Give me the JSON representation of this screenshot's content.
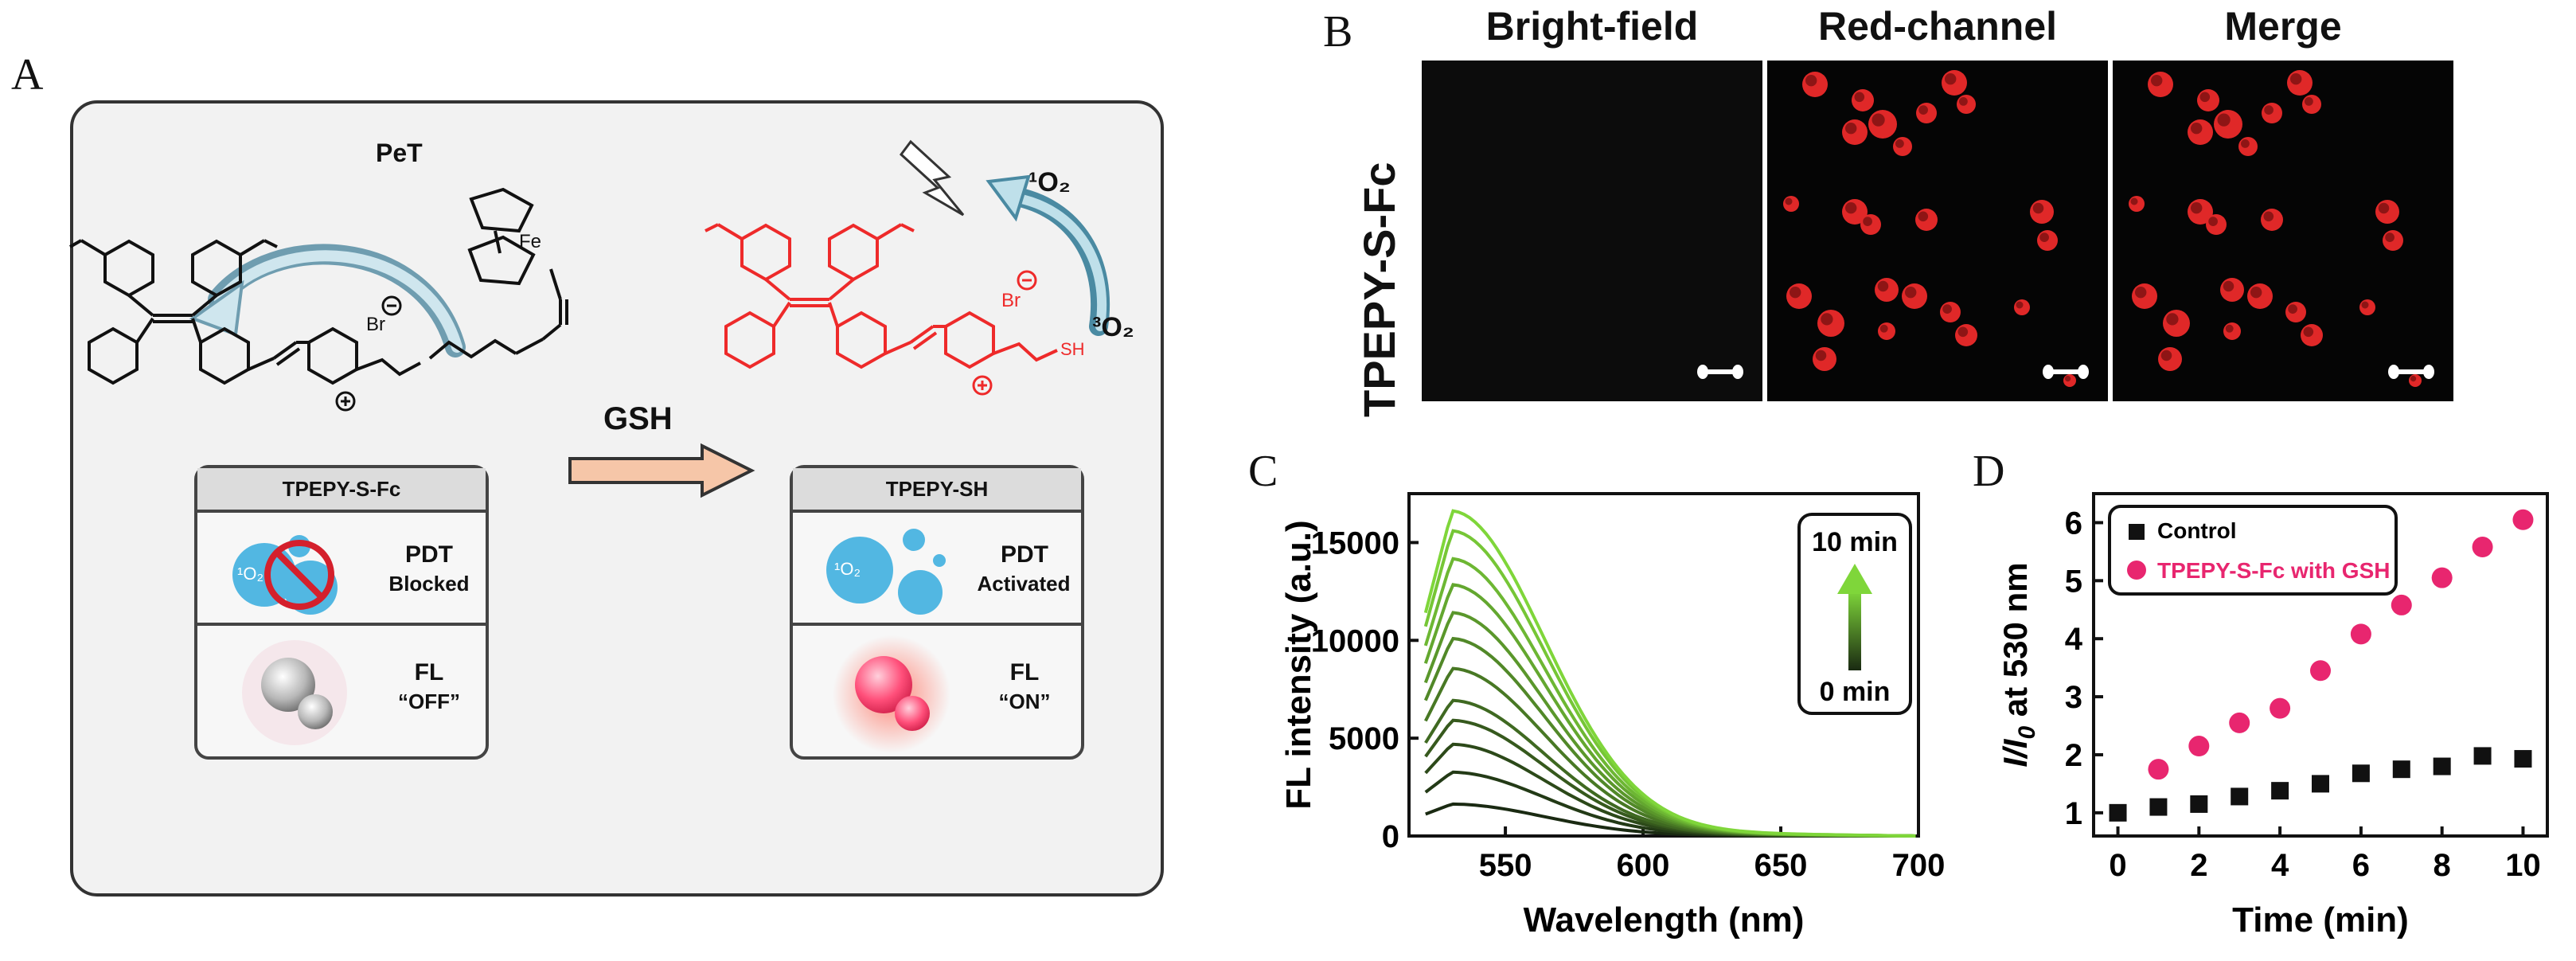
{
  "panel_labels": {
    "a": "A",
    "b": "B",
    "c": "C",
    "d": "D"
  },
  "scheme": {
    "pet_label": "PeT",
    "fe_label": "Fe",
    "br_label": "Br",
    "sh_label": "SH",
    "reagent_label": "GSH",
    "singlet_oxygen": "¹O₂",
    "triplet_oxygen": "³O₂",
    "left_card": {
      "title": "TPEPY-S-Fc",
      "pdt_line1": "PDT",
      "pdt_line2": "Blocked",
      "fl_line1": "FL",
      "fl_line2": "“OFF”"
    },
    "right_card": {
      "title": "TPEPY-SH",
      "pdt_line1": "PDT",
      "pdt_line2": "Activated",
      "fl_line1": "FL",
      "fl_line2": "“ON”"
    },
    "bubble_label": "¹O₂",
    "colors": {
      "probe": "#111111",
      "product": "#ee2a2a",
      "arrow_fill": "#f6c6a8",
      "bubble": "#52b7e2",
      "glow": "#ff5a7a"
    }
  },
  "microscopy": {
    "row_label": "TPEPY-S-Fc",
    "columns": [
      "Bright-field",
      "Red-channel",
      "Merge"
    ]
  },
  "chart_data": [
    {
      "type": "line",
      "panel": "C",
      "xlabel": "Wavelength (nm)",
      "ylabel": "FL intensity (a.u.)",
      "xlim": [
        515,
        700
      ],
      "ylim": [
        0,
        17500
      ],
      "xticks": [
        550,
        600,
        650,
        700
      ],
      "yticks": [
        0,
        5000,
        10000,
        15000
      ],
      "peak_wavelength": 530,
      "series_peaks": [
        1600,
        3200,
        4600,
        5800,
        6800,
        8400,
        9900,
        11200,
        12600,
        13900,
        15300,
        16300
      ],
      "legend": {
        "top": "10 min",
        "bottom": "0 min"
      },
      "colors": {
        "start": "#1a2a12",
        "end": "#7fd63a"
      }
    },
    {
      "type": "scatter",
      "panel": "D",
      "xlabel": "Time (min)",
      "ylabel_main": "I/I",
      "ylabel_sub": "0",
      "ylabel_suffix": " at 530 nm",
      "xlim": [
        -0.6,
        10.6
      ],
      "ylim": [
        0.6,
        6.5
      ],
      "xticks": [
        0,
        2,
        4,
        6,
        8,
        10
      ],
      "yticks": [
        1,
        2,
        3,
        4,
        5,
        6
      ],
      "series": [
        {
          "name": "Control",
          "color": "#111111",
          "marker": "square",
          "x": [
            0,
            1,
            2,
            3,
            4,
            5,
            6,
            7,
            8,
            9,
            10
          ],
          "y": [
            1.0,
            1.1,
            1.15,
            1.28,
            1.38,
            1.5,
            1.68,
            1.75,
            1.8,
            1.98,
            1.93
          ]
        },
        {
          "name": "TPEPY-S-Fc with GSH",
          "color": "#e8266f",
          "marker": "circle",
          "x": [
            1,
            2,
            3,
            4,
            5,
            6,
            7,
            8,
            9,
            10
          ],
          "y": [
            1.75,
            2.15,
            2.55,
            2.8,
            3.45,
            4.08,
            4.58,
            5.05,
            5.58,
            6.05
          ]
        }
      ]
    }
  ]
}
